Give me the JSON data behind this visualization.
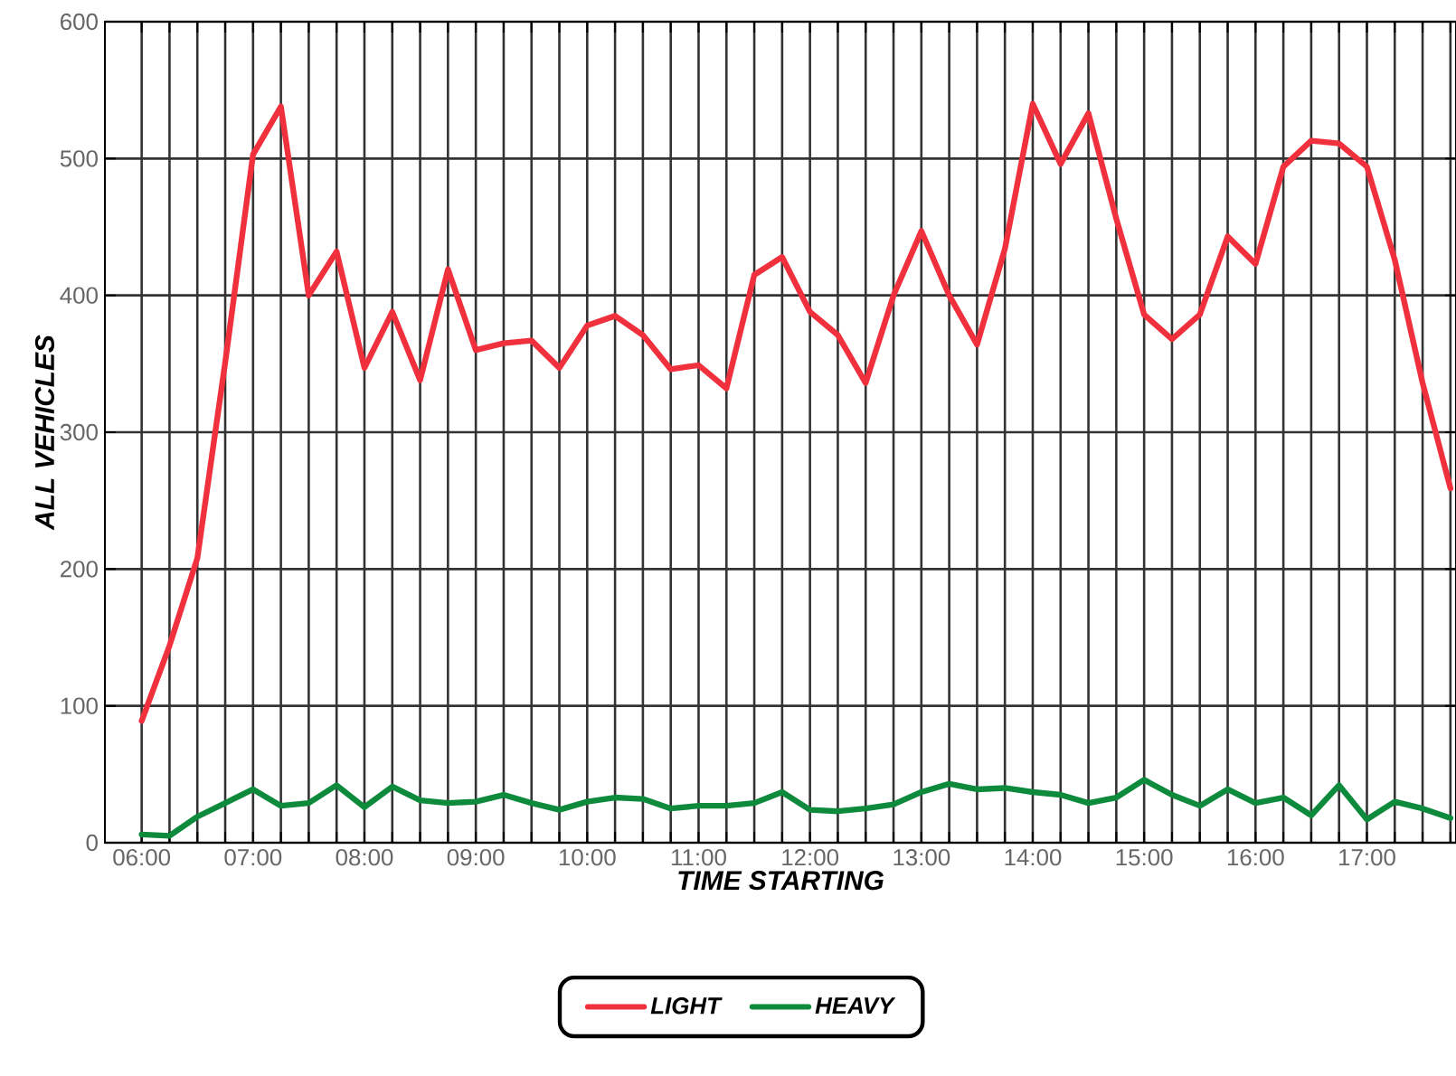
{
  "chart_data": {
    "type": "line",
    "xlabel": "TIME STARTING",
    "ylabel": "ALL VEHICLES",
    "x": [
      6,
      6.25,
      6.5,
      6.75,
      7,
      7.25,
      7.5,
      7.75,
      8,
      8.25,
      8.5,
      8.75,
      9,
      9.25,
      9.5,
      9.75,
      10,
      10.25,
      10.5,
      10.75,
      11,
      11.25,
      11.5,
      11.75,
      12,
      12.25,
      12.5,
      12.75,
      13,
      13.25,
      13.5,
      13.75,
      14,
      14.25,
      14.5,
      14.75,
      15,
      15.25,
      15.5,
      15.75,
      16,
      16.25,
      16.5,
      16.75,
      17,
      17.25,
      17.5,
      17.75
    ],
    "series": [
      {
        "name": "LIGHT",
        "color": "#f0313d",
        "values": [
          89,
          144,
          208,
          351,
          503,
          538,
          400,
          432,
          347,
          388,
          338,
          419,
          360,
          365,
          367,
          347,
          378,
          385,
          371,
          346,
          349,
          332,
          415,
          428,
          388,
          371,
          336,
          400,
          447,
          400,
          364,
          434,
          540,
          496,
          533,
          456,
          386,
          368,
          386,
          443,
          423,
          494,
          513,
          511,
          494,
          426,
          336,
          259
        ]
      },
      {
        "name": "HEAVY",
        "color": "#0e8a3c",
        "values": [
          6,
          5,
          19,
          29,
          39,
          27,
          29,
          42,
          26,
          41,
          31,
          29,
          30,
          35,
          29,
          24,
          30,
          33,
          32,
          25,
          27,
          27,
          29,
          37,
          24,
          23,
          25,
          28,
          37,
          43,
          39,
          40,
          37,
          35,
          29,
          33,
          46,
          35,
          27,
          39,
          29,
          33,
          20,
          42,
          17,
          30,
          25,
          18
        ]
      }
    ],
    "xlim": [
      5.67,
      17.8
    ],
    "ylim": [
      0,
      600
    ],
    "xticks": [
      {
        "value": 6,
        "label": "06:00"
      },
      {
        "value": 6.25,
        "label": null
      },
      {
        "value": 6.5,
        "label": null
      },
      {
        "value": 6.75,
        "label": null
      },
      {
        "value": 7,
        "label": "07:00"
      },
      {
        "value": 7.25,
        "label": null
      },
      {
        "value": 7.5,
        "label": null
      },
      {
        "value": 7.75,
        "label": null
      },
      {
        "value": 8,
        "label": "08:00"
      },
      {
        "value": 8.25,
        "label": null
      },
      {
        "value": 8.5,
        "label": null
      },
      {
        "value": 8.75,
        "label": null
      },
      {
        "value": 9,
        "label": "09:00"
      },
      {
        "value": 9.25,
        "label": null
      },
      {
        "value": 9.5,
        "label": null
      },
      {
        "value": 9.75,
        "label": null
      },
      {
        "value": 10,
        "label": "10:00"
      },
      {
        "value": 10.25,
        "label": null
      },
      {
        "value": 10.5,
        "label": null
      },
      {
        "value": 10.75,
        "label": null
      },
      {
        "value": 11,
        "label": "11:00"
      },
      {
        "value": 11.25,
        "label": null
      },
      {
        "value": 11.5,
        "label": null
      },
      {
        "value": 11.75,
        "label": null
      },
      {
        "value": 12,
        "label": "12:00"
      },
      {
        "value": 12.25,
        "label": null
      },
      {
        "value": 12.5,
        "label": null
      },
      {
        "value": 12.75,
        "label": null
      },
      {
        "value": 13,
        "label": "13:00"
      },
      {
        "value": 13.25,
        "label": null
      },
      {
        "value": 13.5,
        "label": null
      },
      {
        "value": 13.75,
        "label": null
      },
      {
        "value": 14,
        "label": "14:00"
      },
      {
        "value": 14.25,
        "label": null
      },
      {
        "value": 14.5,
        "label": null
      },
      {
        "value": 14.75,
        "label": null
      },
      {
        "value": 15,
        "label": "15:00"
      },
      {
        "value": 15.25,
        "label": null
      },
      {
        "value": 15.5,
        "label": null
      },
      {
        "value": 15.75,
        "label": null
      },
      {
        "value": 16,
        "label": "16:00"
      },
      {
        "value": 16.25,
        "label": null
      },
      {
        "value": 16.5,
        "label": null
      },
      {
        "value": 16.75,
        "label": null
      },
      {
        "value": 17,
        "label": "17:00"
      },
      {
        "value": 17.25,
        "label": null
      },
      {
        "value": 17.5,
        "label": null
      },
      {
        "value": 17.75,
        "label": null
      }
    ],
    "yticks": [
      0,
      100,
      200,
      300,
      400,
      500,
      600
    ],
    "grid": true,
    "legend": "bottom",
    "line_style": "solid",
    "marker": "none"
  }
}
